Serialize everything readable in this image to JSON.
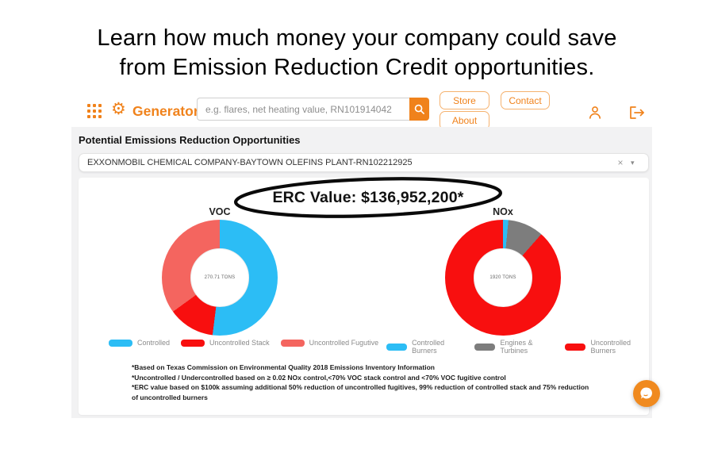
{
  "hero": {
    "line1": "Learn how much money your company could save",
    "line2": "from Emission Reduction Credit opportunities."
  },
  "header": {
    "brand": "Generator",
    "search_placeholder": "e.g. flares, net heating value, RN101914042",
    "nav": {
      "store": "Store",
      "about": "About",
      "contact": "Contact"
    }
  },
  "icons": {
    "gear_logo": "⚙",
    "clear": "×",
    "caret": "▾"
  },
  "page": {
    "section_title": "Potential Emissions Reduction Opportunities",
    "facility_select": {
      "value": "EXXONMOBIL CHEMICAL COMPANY-BAYTOWN OLEFINS PLANT-RN102212925"
    },
    "erc_banner": "ERC Value: $136,952,200*",
    "footnotes": [
      "*Based on Texas Commission on Environmental Quality 2018 Emissions Inventory Information",
      "*Uncontrolled / Undercontrolled based on ≥ 0.02 NOx control,<70% VOC stack control and <70% VOC fugitive control",
      "*ERC value based on $100k assuming additional 50% reduction of uncontrolled fugitives, 99% reduction of controlled stack and 75% reduction of uncontrolled burners"
    ]
  },
  "colors": {
    "brand_orange": "#f0821b",
    "chart_blue": "#2cbdf5",
    "chart_red": "#f80f0f",
    "chart_salmon": "#f4655f",
    "chart_gray": "#7d7d7d",
    "content_bg": "#f2f2f3"
  },
  "chart_data": [
    {
      "type": "pie",
      "donut": true,
      "title": "VOC",
      "center_label": "270.71 TONS",
      "labels": [
        "Controlled",
        "Uncontrolled Stack",
        "Uncontrolled Fugutive"
      ],
      "values_percent": [
        52,
        13,
        35
      ],
      "colors": [
        "#2cbdf5",
        "#f80f0f",
        "#f4655f"
      ],
      "legend_position": "bottom"
    },
    {
      "type": "pie",
      "donut": true,
      "title": "NOx",
      "center_label": "1920 TONS",
      "labels": [
        "Controlled Burners",
        "Engines & Turbines",
        "Uncontrolled Burners"
      ],
      "values_percent": [
        1.5,
        10,
        88.5
      ],
      "colors": [
        "#2cbdf5",
        "#7d7d7d",
        "#f80f0f"
      ],
      "legend_position": "bottom"
    }
  ]
}
